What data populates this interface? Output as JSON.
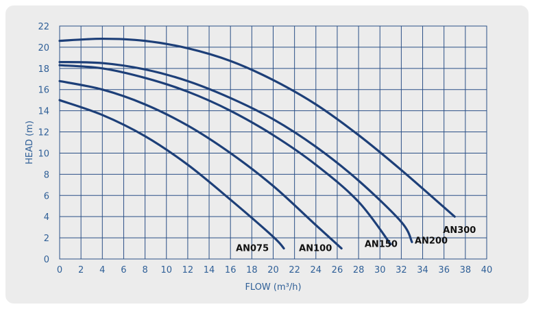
{
  "chart_data": {
    "type": "line",
    "xlabel": "FLOW (m³/h)",
    "ylabel": "HEAD (m)",
    "xlim": [
      0,
      40
    ],
    "ylim": [
      0,
      22
    ],
    "xticks": [
      0,
      2,
      4,
      6,
      8,
      10,
      12,
      14,
      16,
      18,
      20,
      22,
      24,
      26,
      28,
      30,
      32,
      34,
      36,
      38,
      40
    ],
    "yticks": [
      0,
      2,
      4,
      6,
      8,
      10,
      12,
      14,
      16,
      18,
      20,
      22
    ],
    "grid": true,
    "colors": {
      "line": "#1d3f78",
      "grid": "#2a4f86",
      "tick": "#2f5f97",
      "panel": "#ececec"
    },
    "series": [
      {
        "name": "AN075",
        "x": [
          0,
          4,
          8,
          12,
          16,
          20,
          21
        ],
        "y": [
          15.0,
          13.6,
          11.6,
          8.9,
          5.6,
          2.1,
          1.0
        ]
      },
      {
        "name": "AN100",
        "x": [
          0,
          4,
          8,
          12,
          16,
          20,
          24,
          26.4
        ],
        "y": [
          16.8,
          16.0,
          14.6,
          12.6,
          10.0,
          6.9,
          3.2,
          1.0
        ]
      },
      {
        "name": "AN150",
        "x": [
          0,
          4,
          8,
          12,
          16,
          20,
          24,
          28,
          31
        ],
        "y": [
          18.3,
          18.0,
          17.1,
          15.8,
          14.0,
          11.7,
          8.9,
          5.4,
          1.4
        ]
      },
      {
        "name": "AN200",
        "x": [
          0,
          4,
          8,
          12,
          16,
          20,
          24,
          28,
          32,
          33
        ],
        "y": [
          18.6,
          18.5,
          17.9,
          16.8,
          15.2,
          13.2,
          10.6,
          7.4,
          3.5,
          1.6
        ]
      },
      {
        "name": "AN300",
        "x": [
          0,
          4,
          8,
          12,
          16,
          20,
          24,
          28,
          32,
          37
        ],
        "y": [
          20.6,
          20.8,
          20.6,
          19.9,
          18.7,
          16.9,
          14.6,
          11.7,
          8.4,
          4.0
        ]
      }
    ]
  }
}
